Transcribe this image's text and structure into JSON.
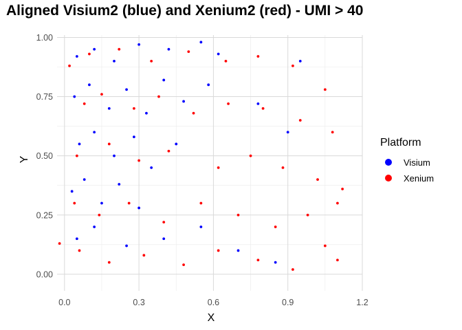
{
  "chart_data": {
    "type": "scatter",
    "title": "Aligned Visium2 (blue) and Xenium2 (red) - UMI > 40",
    "xlabel": "X",
    "ylabel": "Y",
    "xlim": [
      -0.03,
      1.2
    ],
    "ylim": [
      -0.07,
      1.01
    ],
    "x_ticks": [
      0.0,
      0.3,
      0.6,
      0.9,
      1.2
    ],
    "x_tick_labels": [
      "0.0",
      "0.3",
      "0.6",
      "0.9",
      "1.2"
    ],
    "y_ticks": [
      0.0,
      0.25,
      0.5,
      0.75,
      1.0
    ],
    "y_tick_labels": [
      "0.00",
      "0.25",
      "0.50",
      "0.75",
      "1.00"
    ],
    "grid": true,
    "legend": {
      "title": "Platform",
      "position": "right",
      "entries": [
        {
          "label": "Visium",
          "color": "#0000ff"
        },
        {
          "label": "Xenium",
          "color": "#ff0000"
        }
      ]
    },
    "series": [
      {
        "name": "Visium",
        "color": "#0000ff",
        "points": [
          [
            0.05,
            0.92
          ],
          [
            0.12,
            0.95
          ],
          [
            0.2,
            0.9
          ],
          [
            0.3,
            0.97
          ],
          [
            0.42,
            0.95
          ],
          [
            0.55,
            0.98
          ],
          [
            0.62,
            0.93
          ],
          [
            0.04,
            0.75
          ],
          [
            0.1,
            0.8
          ],
          [
            0.18,
            0.7
          ],
          [
            0.25,
            0.78
          ],
          [
            0.33,
            0.68
          ],
          [
            0.4,
            0.82
          ],
          [
            0.48,
            0.73
          ],
          [
            0.58,
            0.8
          ],
          [
            0.06,
            0.55
          ],
          [
            0.12,
            0.6
          ],
          [
            0.2,
            0.5
          ],
          [
            0.28,
            0.58
          ],
          [
            0.35,
            0.45
          ],
          [
            0.45,
            0.55
          ],
          [
            0.03,
            0.35
          ],
          [
            0.08,
            0.4
          ],
          [
            0.15,
            0.3
          ],
          [
            0.22,
            0.38
          ],
          [
            0.3,
            0.28
          ],
          [
            0.05,
            0.15
          ],
          [
            0.12,
            0.2
          ],
          [
            0.25,
            0.12
          ],
          [
            0.4,
            0.15
          ],
          [
            0.55,
            0.2
          ],
          [
            0.7,
            0.1
          ],
          [
            0.85,
            0.05
          ],
          [
            0.95,
            0.9
          ],
          [
            0.78,
            0.72
          ],
          [
            0.9,
            0.6
          ]
        ]
      },
      {
        "name": "Xenium",
        "color": "#ff0000",
        "points": [
          [
            0.02,
            0.88
          ],
          [
            0.1,
            0.93
          ],
          [
            0.22,
            0.95
          ],
          [
            0.35,
            0.9
          ],
          [
            0.5,
            0.94
          ],
          [
            0.65,
            0.9
          ],
          [
            0.78,
            0.92
          ],
          [
            0.92,
            0.88
          ],
          [
            1.05,
            0.78
          ],
          [
            0.08,
            0.72
          ],
          [
            0.15,
            0.76
          ],
          [
            0.28,
            0.7
          ],
          [
            0.38,
            0.75
          ],
          [
            0.52,
            0.68
          ],
          [
            0.66,
            0.72
          ],
          [
            0.8,
            0.7
          ],
          [
            0.95,
            0.65
          ],
          [
            1.08,
            0.6
          ],
          [
            0.05,
            0.5
          ],
          [
            0.18,
            0.55
          ],
          [
            0.3,
            0.48
          ],
          [
            0.42,
            0.52
          ],
          [
            0.62,
            0.45
          ],
          [
            0.75,
            0.5
          ],
          [
            0.88,
            0.45
          ],
          [
            1.02,
            0.4
          ],
          [
            1.12,
            0.36
          ],
          [
            0.04,
            0.3
          ],
          [
            0.14,
            0.25
          ],
          [
            0.26,
            0.3
          ],
          [
            0.4,
            0.22
          ],
          [
            0.55,
            0.3
          ],
          [
            0.7,
            0.25
          ],
          [
            0.85,
            0.2
          ],
          [
            0.98,
            0.25
          ],
          [
            1.1,
            0.3
          ],
          [
            0.06,
            0.1
          ],
          [
            0.18,
            0.05
          ],
          [
            0.32,
            0.08
          ],
          [
            0.48,
            0.04
          ],
          [
            0.62,
            0.1
          ],
          [
            0.78,
            0.06
          ],
          [
            0.92,
            0.02
          ],
          [
            1.05,
            0.12
          ],
          [
            1.1,
            0.06
          ],
          [
            -0.02,
            0.13
          ]
        ]
      }
    ]
  }
}
